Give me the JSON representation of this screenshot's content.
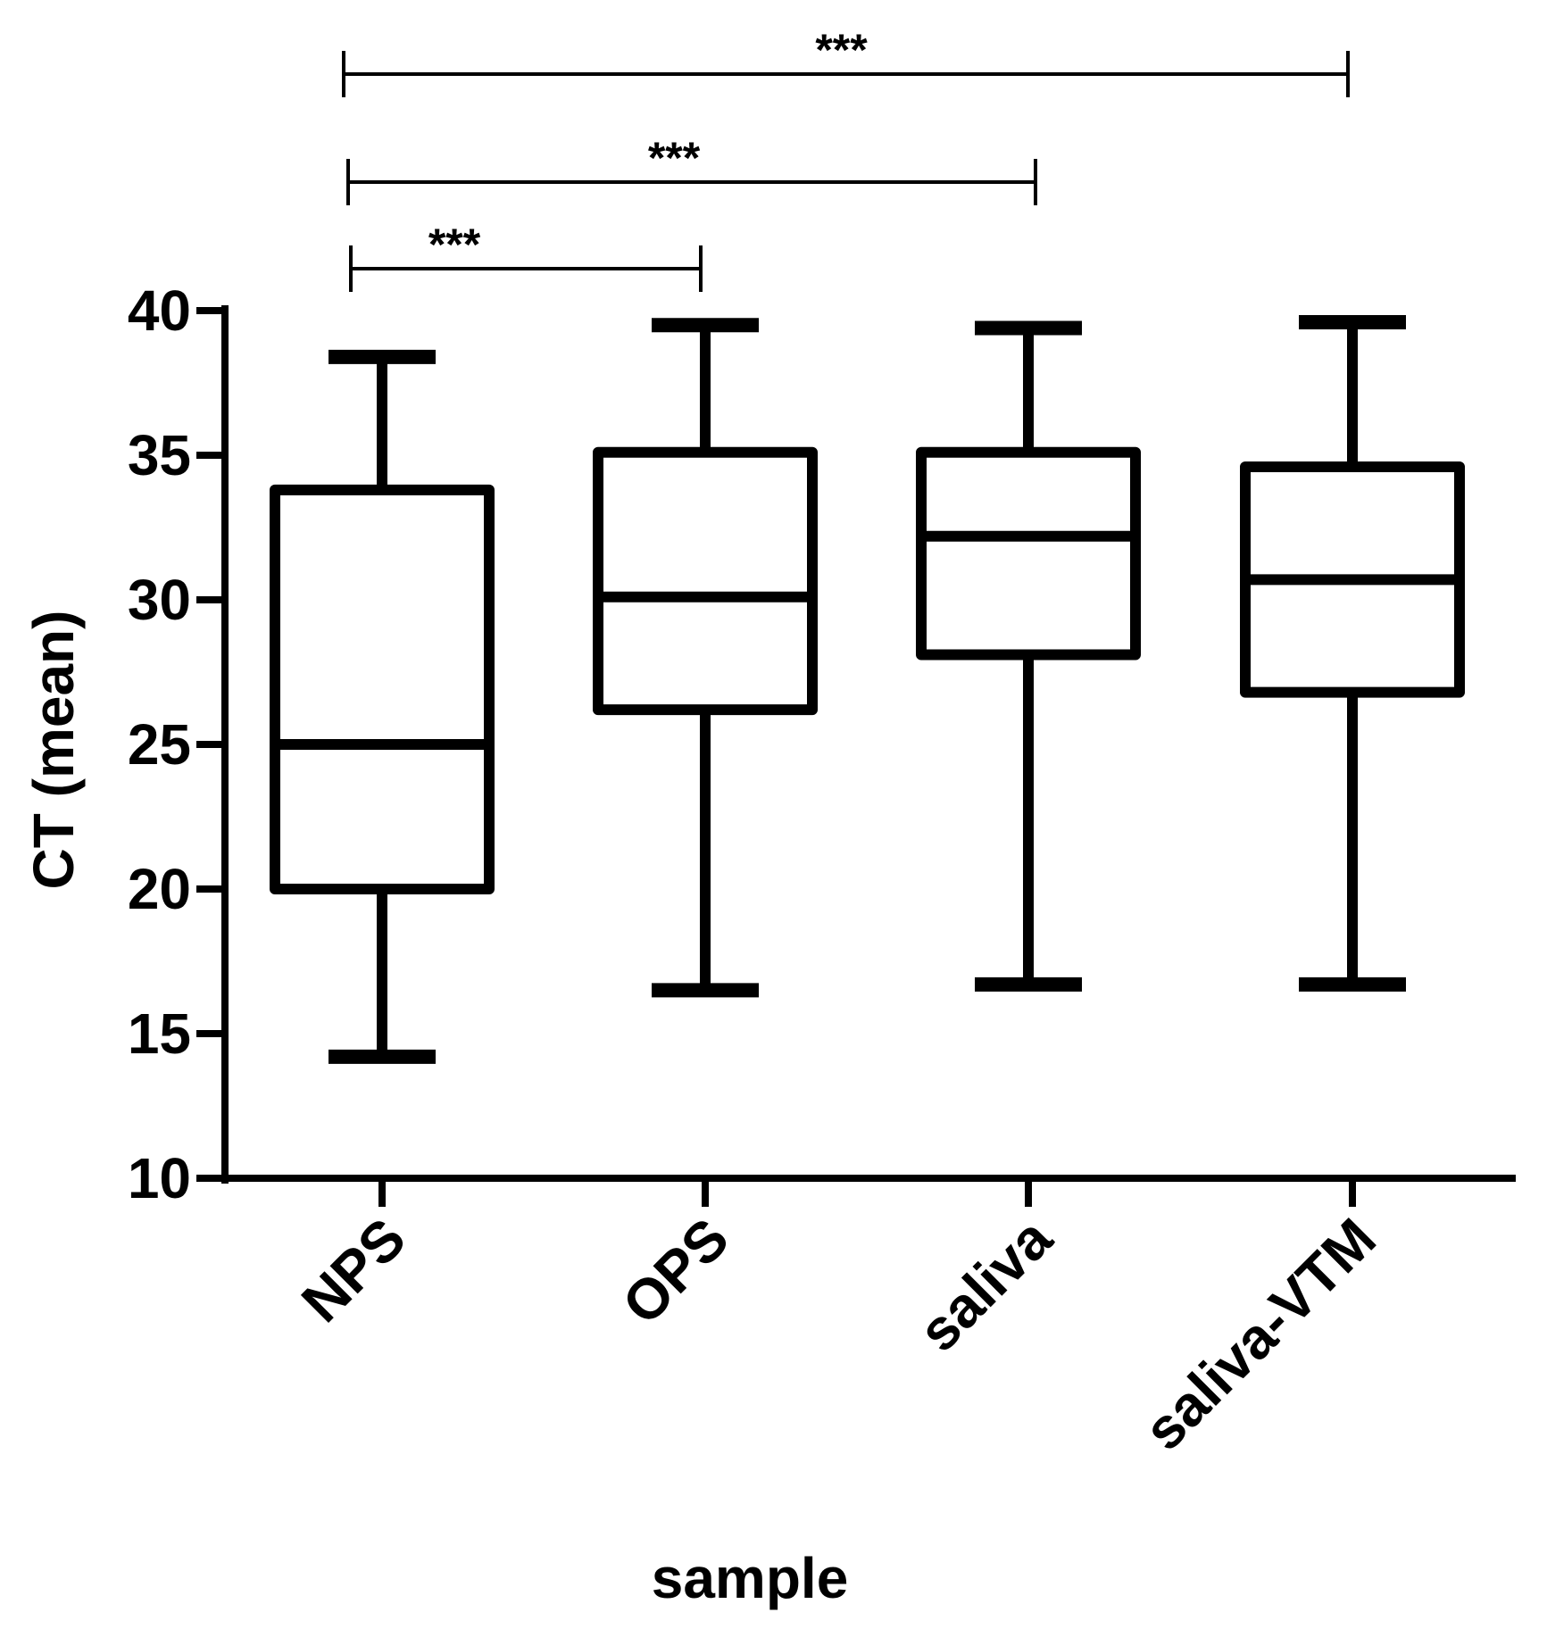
{
  "chart_data": {
    "type": "boxplot",
    "title": "",
    "xlabel": "sample",
    "ylabel": "CT (mean)",
    "ylim": [
      10,
      40
    ],
    "yticks": [
      10,
      15,
      20,
      25,
      30,
      35,
      40
    ],
    "ytick_labels": [
      "10",
      "15",
      "20",
      "25",
      "30",
      "35",
      "40"
    ],
    "grid": false,
    "legend": "none",
    "categories": [
      "NPS",
      "OPS",
      "saliva",
      "saliva-VTM"
    ],
    "boxes": [
      {
        "category": "NPS",
        "min": 14.2,
        "q1": 20.0,
        "median": 25.0,
        "q3": 33.8,
        "max": 38.4
      },
      {
        "category": "OPS",
        "min": 16.5,
        "q1": 26.2,
        "median": 30.1,
        "q3": 35.1,
        "max": 39.5
      },
      {
        "category": "saliva",
        "min": 16.7,
        "q1": 28.1,
        "median": 32.2,
        "q3": 35.1,
        "max": 39.4
      },
      {
        "category": "saliva-VTM",
        "min": 16.7,
        "q1": 26.8,
        "median": 30.7,
        "q3": 34.6,
        "max": 39.6
      }
    ],
    "significance": [
      {
        "from": "NPS",
        "to": "saliva-VTM",
        "label": "***"
      },
      {
        "from": "NPS",
        "to": "saliva",
        "label": "***"
      },
      {
        "from": "NPS",
        "to": "OPS",
        "label": "***"
      }
    ]
  }
}
